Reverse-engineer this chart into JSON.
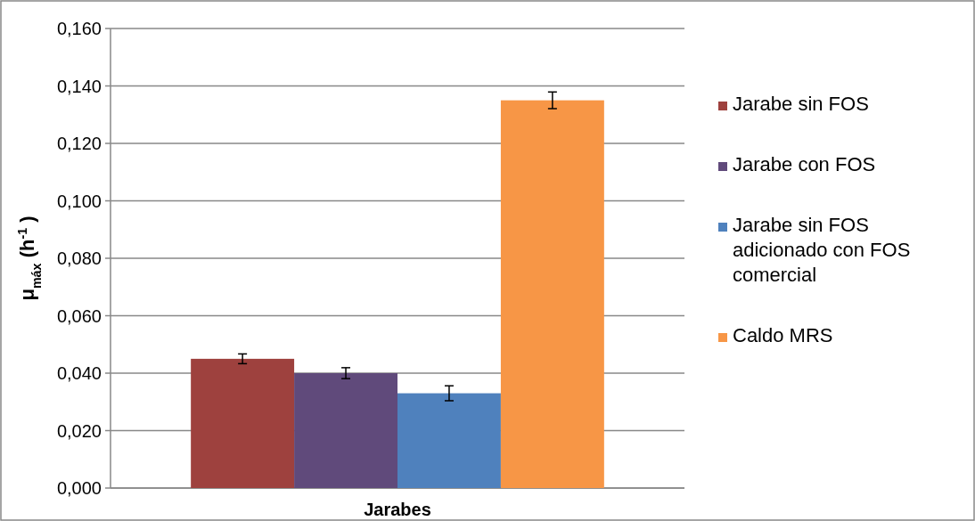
{
  "chart_data": {
    "type": "bar",
    "xlabel": "Jarabes",
    "ylabel": "μ$_{máx}$ (h$^{-1}$)",
    "categories": [
      null
    ],
    "series": [
      {
        "name": "Jarabe sin FOS",
        "color": "#9e413e",
        "values": [
          0.045
        ],
        "errors": [
          0.0017
        ]
      },
      {
        "name": "Jarabe con FOS",
        "color": "#604a7b",
        "values": [
          0.04
        ],
        "errors": [
          0.0019
        ]
      },
      {
        "name": "Jarabe sin FOS adicionado con FOS comercial",
        "color": "#4f81bd",
        "values": [
          0.033
        ],
        "errors": [
          0.0026
        ]
      },
      {
        "name": "Caldo MRS",
        "color": "#f79646",
        "values": [
          0.135
        ],
        "errors": [
          0.0029
        ]
      }
    ],
    "ylim": [
      0,
      0.16
    ],
    "yticks": [
      {
        "value": 0,
        "label": "0,000"
      },
      {
        "value": 0.02,
        "label": "0,020"
      },
      {
        "value": 0.04,
        "label": "0,040"
      },
      {
        "value": 0.06,
        "label": "0,060"
      },
      {
        "value": 0.08,
        "label": "0,080"
      },
      {
        "value": 0.1,
        "label": "0,100"
      },
      {
        "value": 0.12,
        "label": "0,120"
      },
      {
        "value": 0.14,
        "label": "0,140"
      },
      {
        "value": 0.16,
        "label": "0,160"
      }
    ],
    "grid": "y",
    "legend": "right"
  }
}
